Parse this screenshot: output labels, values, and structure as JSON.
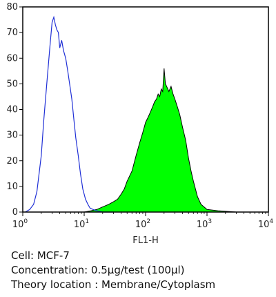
{
  "chart_data": {
    "type": "histogram",
    "xlabel": "FL1-H",
    "x_scale": "log",
    "xlim": [
      1,
      10000
    ],
    "x_ticks": [
      {
        "base": "10",
        "exp": "0",
        "value": 1
      },
      {
        "base": "10",
        "exp": "1",
        "value": 10
      },
      {
        "base": "10",
        "exp": "2",
        "value": 100
      },
      {
        "base": "10",
        "exp": "3",
        "value": 1000
      },
      {
        "base": "10",
        "exp": "4",
        "value": 10000
      }
    ],
    "ylim": [
      0,
      80
    ],
    "y_ticks": [
      0,
      10,
      20,
      30,
      40,
      50,
      60,
      70,
      80
    ],
    "series": [
      {
        "style": "line",
        "color": "#1f2fd6",
        "x": [
          1.1,
          1.3,
          1.5,
          1.7,
          2.0,
          2.2,
          2.5,
          2.8,
          3.0,
          3.2,
          3.4,
          3.6,
          3.8,
          4.0,
          4.3,
          4.6,
          5.0,
          5.4,
          5.8,
          6.3,
          6.8,
          7.3,
          8.0,
          8.7,
          9.5,
          10.5,
          11.5,
          12.5,
          14,
          16,
          20,
          30
        ],
        "y": [
          0,
          1,
          3,
          8,
          22,
          36,
          52,
          66,
          74,
          76,
          73,
          71,
          70,
          64,
          67,
          63,
          60,
          55,
          50,
          44,
          36,
          29,
          22,
          15,
          9,
          5,
          3,
          1.5,
          1,
          0.5,
          0,
          0
        ]
      },
      {
        "style": "filled",
        "color": "#00ff00",
        "x": [
          10,
          13,
          16,
          20,
          25,
          30,
          35,
          40,
          45,
          50,
          60,
          70,
          80,
          90,
          100,
          110,
          120,
          130,
          140,
          150,
          160,
          170,
          180,
          190,
          200,
          210,
          220,
          230,
          240,
          260,
          280,
          300,
          330,
          360,
          400,
          450,
          500,
          550,
          600,
          700,
          800,
          1000,
          1500,
          3000,
          10000
        ],
        "y": [
          0,
          0.5,
          1,
          2,
          3,
          4,
          5,
          7,
          9,
          12,
          16,
          22,
          27,
          31,
          35,
          37,
          39,
          41,
          43,
          44,
          46,
          45,
          48,
          47,
          56,
          50,
          49,
          48,
          47,
          49,
          46,
          44,
          41,
          38,
          33,
          28,
          21,
          16,
          12,
          6,
          3,
          1,
          0.5,
          0,
          0
        ]
      }
    ]
  },
  "info": {
    "cell": "Cell: MCF-7",
    "concentration": "Concentration: 0.5µg/test (100µl)",
    "location": "Theory location : Membrane/Cytoplasm"
  }
}
